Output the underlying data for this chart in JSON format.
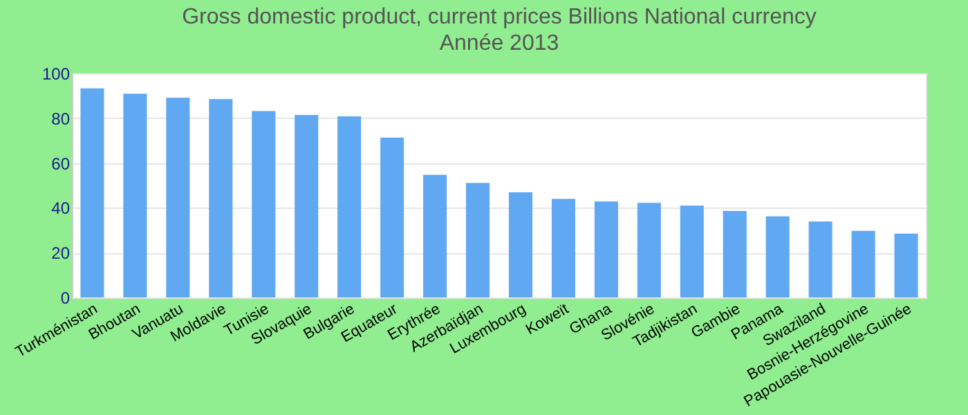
{
  "chart_data": {
    "type": "bar",
    "title": "Gross domestic product, current prices Billions National currency",
    "subtitle": "Année 2013",
    "categories": [
      "Turkménistan",
      "Bhoutan",
      "Vanuatu",
      "Moldavie",
      "Tunisie",
      "Slovaquie",
      "Bulgarie",
      "Equateur",
      "Erythrée",
      "Azerbaïdjan",
      "Luxembourg",
      "Koweït",
      "Ghana",
      "Slovénie",
      "Tadjikistan",
      "Gambie",
      "Panama",
      "Swaziland",
      "Bosnie-Herzégovine",
      "Papouasie-Nouvelle-Guinée"
    ],
    "values": [
      93.3,
      90.9,
      89.1,
      88.5,
      83.2,
      81.4,
      80.8,
      71.3,
      54.7,
      51.1,
      46.9,
      44.0,
      42.8,
      42.2,
      41.0,
      38.6,
      36.2,
      33.9,
      29.7,
      28.5
    ],
    "color": "#60a8f2",
    "ylim": [
      0,
      100
    ],
    "yticks": [
      0,
      20,
      40,
      60,
      80,
      100
    ],
    "grid": "y"
  }
}
